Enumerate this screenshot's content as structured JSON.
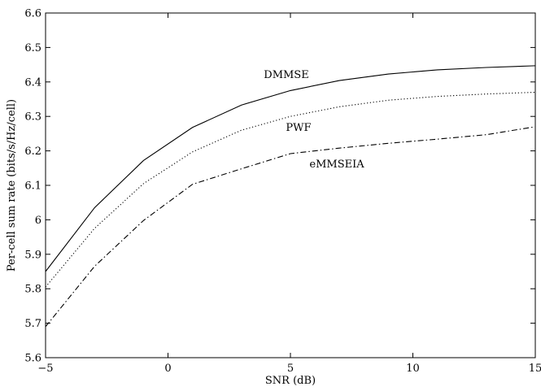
{
  "chart_data": {
    "type": "line",
    "title": "",
    "xlabel": "SNR (dB)",
    "ylabel": "Per-cell sum rate (bits/s/Hz/cell)",
    "xlim": [
      -5,
      15
    ],
    "ylim": [
      5.6,
      6.6
    ],
    "xticks": [
      -5,
      0,
      5,
      10,
      15
    ],
    "yticks": [
      5.6,
      5.7,
      5.8,
      5.9,
      6,
      6.1,
      6.2,
      6.3,
      6.4,
      6.5,
      6.6
    ],
    "xtick_labels": [
      "−5",
      "0",
      "5",
      "10",
      "15"
    ],
    "ytick_labels": [
      "5.6",
      "5.7",
      "5.8",
      "5.9",
      "6",
      "6.1",
      "6.2",
      "6.3",
      "6.4",
      "6.5",
      "6.6"
    ],
    "grid": false,
    "legend": "none",
    "series": [
      {
        "name": "DMMSE",
        "style": "solid",
        "color": "#000000",
        "x": [
          -5,
          -3,
          -1,
          1,
          3,
          5,
          7,
          9,
          11,
          13,
          15
        ],
        "y": [
          5.85,
          6.035,
          6.172,
          6.268,
          6.333,
          6.375,
          6.404,
          6.423,
          6.435,
          6.442,
          6.447
        ]
      },
      {
        "name": "PWF",
        "style": "dotted",
        "color": "#000000",
        "x": [
          -5,
          -3,
          -1,
          1,
          3,
          5,
          7,
          9,
          11,
          13,
          15
        ],
        "y": [
          5.805,
          5.975,
          6.105,
          6.197,
          6.26,
          6.3,
          6.328,
          6.347,
          6.358,
          6.365,
          6.37
        ]
      },
      {
        "name": "eMMSEIA",
        "style": "dashdot",
        "color": "#000000",
        "x": [
          -5,
          -3,
          -1,
          1,
          3,
          5,
          7,
          9,
          11,
          13,
          15
        ],
        "y": [
          5.69,
          5.865,
          5.998,
          6.103,
          6.148,
          6.192,
          6.208,
          6.222,
          6.234,
          6.247,
          6.27
        ]
      }
    ]
  }
}
